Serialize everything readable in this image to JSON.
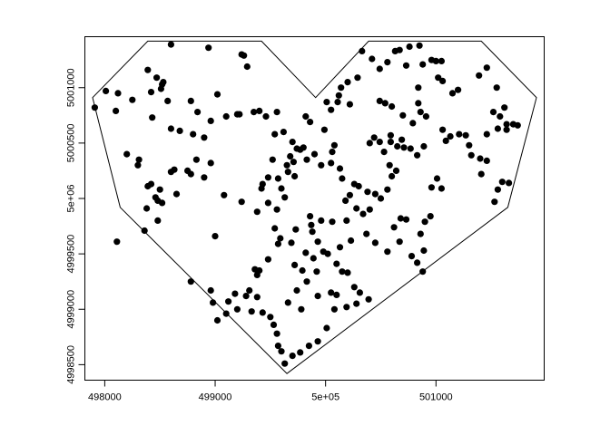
{
  "chart_data": {
    "type": "scatter",
    "title": "",
    "xlabel": "",
    "ylabel": "",
    "xlim": [
      497820,
      501980
    ],
    "ylim": [
      4998360,
      5001460
    ],
    "grid": false,
    "x_ticks": [
      {
        "value": 498000,
        "label": "498000"
      },
      {
        "value": 499000,
        "label": "499000"
      },
      {
        "value": 500000,
        "label": "5e+05"
      },
      {
        "value": 501000,
        "label": "501000"
      }
    ],
    "y_ticks": [
      {
        "value": 4998500,
        "label": "4998500"
      },
      {
        "value": 4999000,
        "label": "4999000"
      },
      {
        "value": 4999500,
        "label": "4999500"
      },
      {
        "value": 5000000,
        "label": "5e+06"
      },
      {
        "value": 5000500,
        "label": "5000500"
      },
      {
        "value": 5001000,
        "label": "5001000"
      }
    ],
    "outline": [
      [
        497890,
        5000910
      ],
      [
        498390,
        5001420
      ],
      [
        499420,
        5001420
      ],
      [
        499910,
        5000910
      ],
      [
        500390,
        5001420
      ],
      [
        501410,
        5001420
      ],
      [
        501910,
        5000910
      ],
      [
        501650,
        4999920
      ],
      [
        499650,
        4998420
      ],
      [
        498140,
        4999920
      ]
    ],
    "points": [
      [
        497910,
        5000820
      ],
      [
        498010,
        5000970
      ],
      [
        498120,
        5000950
      ],
      [
        498100,
        5000790
      ],
      [
        498390,
        5001160
      ],
      [
        498470,
        5001090
      ],
      [
        498510,
        5000990
      ],
      [
        498530,
        5001050
      ],
      [
        498520,
        5001030
      ],
      [
        498600,
        5001390
      ],
      [
        498940,
        5001360
      ],
      [
        499240,
        5001300
      ],
      [
        499260,
        5001290
      ],
      [
        499290,
        5001190
      ],
      [
        498250,
        5000890
      ],
      [
        498420,
        5000960
      ],
      [
        498430,
        5000730
      ],
      [
        498570,
        5000880
      ],
      [
        498600,
        5000630
      ],
      [
        498780,
        5000880
      ],
      [
        498680,
        5000610
      ],
      [
        498840,
        5000780
      ],
      [
        498960,
        5000700
      ],
      [
        499020,
        5000940
      ],
      [
        499100,
        5000740
      ],
      [
        499220,
        5000760
      ],
      [
        499200,
        5000760
      ],
      [
        499350,
        5000780
      ],
      [
        499400,
        5000790
      ],
      [
        499460,
        5000740
      ],
      [
        499560,
        5000780
      ],
      [
        498110,
        4999610
      ],
      [
        498200,
        5000400
      ],
      [
        498310,
        5000350
      ],
      [
        498300,
        5000300
      ],
      [
        498390,
        5000110
      ],
      [
        498420,
        5000130
      ],
      [
        498500,
        5000080
      ],
      [
        498460,
        5000010
      ],
      [
        498480,
        4999980
      ],
      [
        498520,
        4999960
      ],
      [
        498600,
        5000240
      ],
      [
        498630,
        5000260
      ],
      [
        498750,
        5000250
      ],
      [
        498780,
        5000220
      ],
      [
        498900,
        5000550
      ],
      [
        498800,
        5000580
      ],
      [
        498830,
        5000350
      ],
      [
        498960,
        5000320
      ],
      [
        499080,
        5000030
      ],
      [
        498650,
        5000040
      ],
      [
        498380,
        4999910
      ],
      [
        498480,
        4999800
      ],
      [
        498360,
        4999710
      ],
      [
        498900,
        5000190
      ],
      [
        499240,
        4999970
      ],
      [
        499380,
        4999880
      ],
      [
        499540,
        5000580
      ],
      [
        499520,
        5000350
      ],
      [
        499480,
        5000190
      ],
      [
        499430,
        5000130
      ],
      [
        499420,
        5000090
      ],
      [
        499480,
        4999960
      ],
      [
        499660,
        5000240
      ],
      [
        499720,
        5000200
      ],
      [
        499700,
        5000510
      ],
      [
        499620,
        5000600
      ],
      [
        499770,
        5000440
      ],
      [
        499800,
        5000460
      ],
      [
        499820,
        5000740
      ],
      [
        499860,
        5000690
      ],
      [
        499990,
        5000620
      ],
      [
        500060,
        5000420
      ],
      [
        500080,
        5000480
      ],
      [
        500050,
        5000800
      ],
      [
        500010,
        5000870
      ],
      [
        500140,
        5001000
      ],
      [
        500220,
        5000850
      ],
      [
        500330,
        5001330
      ],
      [
        500490,
        5001170
      ],
      [
        500670,
        5001340
      ],
      [
        500630,
        5001330
      ],
      [
        500730,
        5001200
      ],
      [
        500840,
        5001000
      ],
      [
        500840,
        5000860
      ],
      [
        500860,
        5000780
      ],
      [
        500910,
        5000740
      ],
      [
        500790,
        5000680
      ],
      [
        500700,
        5000750
      ],
      [
        500600,
        5000830
      ],
      [
        500540,
        5000860
      ],
      [
        500490,
        5000880
      ],
      [
        500590,
        5000570
      ],
      [
        500690,
        5000530
      ],
      [
        500770,
        5000450
      ],
      [
        500830,
        5000390
      ],
      [
        500890,
        5000470
      ],
      [
        500960,
        5000100
      ],
      [
        501050,
        5000090
      ],
      [
        501010,
        5000180
      ],
      [
        501090,
        5000520
      ],
      [
        501130,
        5000560
      ],
      [
        501060,
        5000620
      ],
      [
        501210,
        5000580
      ],
      [
        501270,
        5000570
      ],
      [
        501300,
        5000480
      ],
      [
        501320,
        5000390
      ],
      [
        501400,
        5000360
      ],
      [
        501460,
        5000340
      ],
      [
        501410,
        5000220
      ],
      [
        501530,
        4999970
      ],
      [
        501560,
        5000080
      ],
      [
        501600,
        5000150
      ],
      [
        501660,
        5000140
      ],
      [
        501700,
        5000670
      ],
      [
        501740,
        5000660
      ],
      [
        501640,
        5000670
      ],
      [
        501560,
        5000630
      ],
      [
        501460,
        5000580
      ],
      [
        501520,
        5000780
      ],
      [
        501580,
        5000740
      ],
      [
        501640,
        5000620
      ],
      [
        501620,
        5000820
      ],
      [
        501550,
        5001000
      ],
      [
        501460,
        5001180
      ],
      [
        501390,
        5001110
      ],
      [
        501200,
        5000980
      ],
      [
        501150,
        5000950
      ],
      [
        501020,
        5001090
      ],
      [
        501060,
        5001060
      ],
      [
        500960,
        5001250
      ],
      [
        501000,
        5001240
      ],
      [
        500880,
        5001210
      ],
      [
        501050,
        5001240
      ],
      [
        500850,
        5001380
      ],
      [
        500760,
        5001370
      ],
      [
        500560,
        5001230
      ],
      [
        500420,
        5001260
      ],
      [
        500290,
        5001090
      ],
      [
        500200,
        5001050
      ],
      [
        500120,
        5000930
      ],
      [
        500110,
        5000870
      ],
      [
        500440,
        5000550
      ],
      [
        500400,
        5000500
      ],
      [
        500490,
        5000510
      ],
      [
        500530,
        5000420
      ],
      [
        500590,
        5000510
      ],
      [
        500650,
        5000470
      ],
      [
        500710,
        5000460
      ],
      [
        500580,
        5000300
      ],
      [
        500640,
        5000250
      ],
      [
        500600,
        5000200
      ],
      [
        500560,
        5000080
      ],
      [
        500500,
        5000000
      ],
      [
        500450,
        5000040
      ],
      [
        500380,
        5000060
      ],
      [
        500300,
        5000110
      ],
      [
        500220,
        5000030
      ],
      [
        500180,
        4999980
      ],
      [
        500190,
        4999800
      ],
      [
        500280,
        4999910
      ],
      [
        500340,
        4999860
      ],
      [
        500370,
        4999680
      ],
      [
        500450,
        4999600
      ],
      [
        500560,
        4999520
      ],
      [
        500670,
        4999610
      ],
      [
        500780,
        4999480
      ],
      [
        500830,
        4999420
      ],
      [
        500880,
        4999340
      ],
      [
        500890,
        4999530
      ],
      [
        500860,
        4999680
      ],
      [
        500950,
        4999840
      ],
      [
        500900,
        4999790
      ],
      [
        500680,
        4999820
      ],
      [
        500620,
        4999740
      ],
      [
        500730,
        4999810
      ],
      [
        500400,
        4999900
      ],
      [
        500260,
        5000130
      ],
      [
        500150,
        5000180
      ],
      [
        500130,
        5000270
      ],
      [
        500050,
        5000320
      ],
      [
        499960,
        5000300
      ],
      [
        499900,
        5000400
      ],
      [
        499830,
        5000350
      ],
      [
        499710,
        5000330
      ],
      [
        499740,
        5000450
      ],
      [
        499680,
        5000380
      ],
      [
        499650,
        5000300
      ],
      [
        499570,
        5000180
      ],
      [
        499600,
        5000090
      ],
      [
        499630,
        5000010
      ],
      [
        499560,
        4999900
      ],
      [
        499540,
        4999730
      ],
      [
        499570,
        4999590
      ],
      [
        499480,
        4999450
      ],
      [
        499400,
        4999350
      ],
      [
        499360,
        4999360
      ],
      [
        499310,
        4999170
      ],
      [
        499280,
        4999120
      ],
      [
        499180,
        4999140
      ],
      [
        499120,
        4999070
      ],
      [
        498980,
        4999060
      ],
      [
        498960,
        4999170
      ],
      [
        498780,
        4999250
      ],
      [
        499000,
        4999660
      ],
      [
        499380,
        4999310
      ],
      [
        499590,
        4999640
      ],
      [
        499730,
        4999720
      ],
      [
        499860,
        4999840
      ],
      [
        499880,
        4999700
      ],
      [
        499930,
        4999610
      ],
      [
        499980,
        4999520
      ],
      [
        500020,
        4999500
      ],
      [
        500100,
        4999410
      ],
      [
        500150,
        4999340
      ],
      [
        500200,
        4999330
      ],
      [
        500260,
        4999200
      ],
      [
        500310,
        4999150
      ],
      [
        500390,
        4999090
      ],
      [
        500280,
        4999050
      ],
      [
        500190,
        4999020
      ],
      [
        500080,
        4999000
      ],
      [
        500010,
        4998830
      ],
      [
        499930,
        4998710
      ],
      [
        499850,
        4998670
      ],
      [
        499770,
        4998610
      ],
      [
        499700,
        4998580
      ],
      [
        499630,
        4998510
      ],
      [
        499600,
        4998620
      ],
      [
        499570,
        4998670
      ],
      [
        499560,
        4998780
      ],
      [
        499530,
        4998860
      ],
      [
        499500,
        4998930
      ],
      [
        499430,
        4998970
      ],
      [
        499330,
        4998980
      ],
      [
        499200,
        4999000
      ],
      [
        499100,
        4998960
      ],
      [
        499020,
        4998900
      ],
      [
        499380,
        4999110
      ],
      [
        499660,
        4999060
      ],
      [
        499780,
        4999000
      ],
      [
        499930,
        4999120
      ],
      [
        500050,
        4999150
      ],
      [
        500100,
        4999130
      ],
      [
        499890,
        4999460
      ],
      [
        499820,
        4999510
      ],
      [
        499790,
        4999350
      ],
      [
        499720,
        4999400
      ],
      [
        499690,
        4999600
      ],
      [
        499740,
        4999170
      ],
      [
        499830,
        4999250
      ],
      [
        499920,
        4999340
      ],
      [
        500130,
        4999560
      ],
      [
        500230,
        4999620
      ],
      [
        500060,
        4999790
      ],
      [
        499960,
        4999800
      ],
      [
        499870,
        4999760
      ]
    ]
  }
}
